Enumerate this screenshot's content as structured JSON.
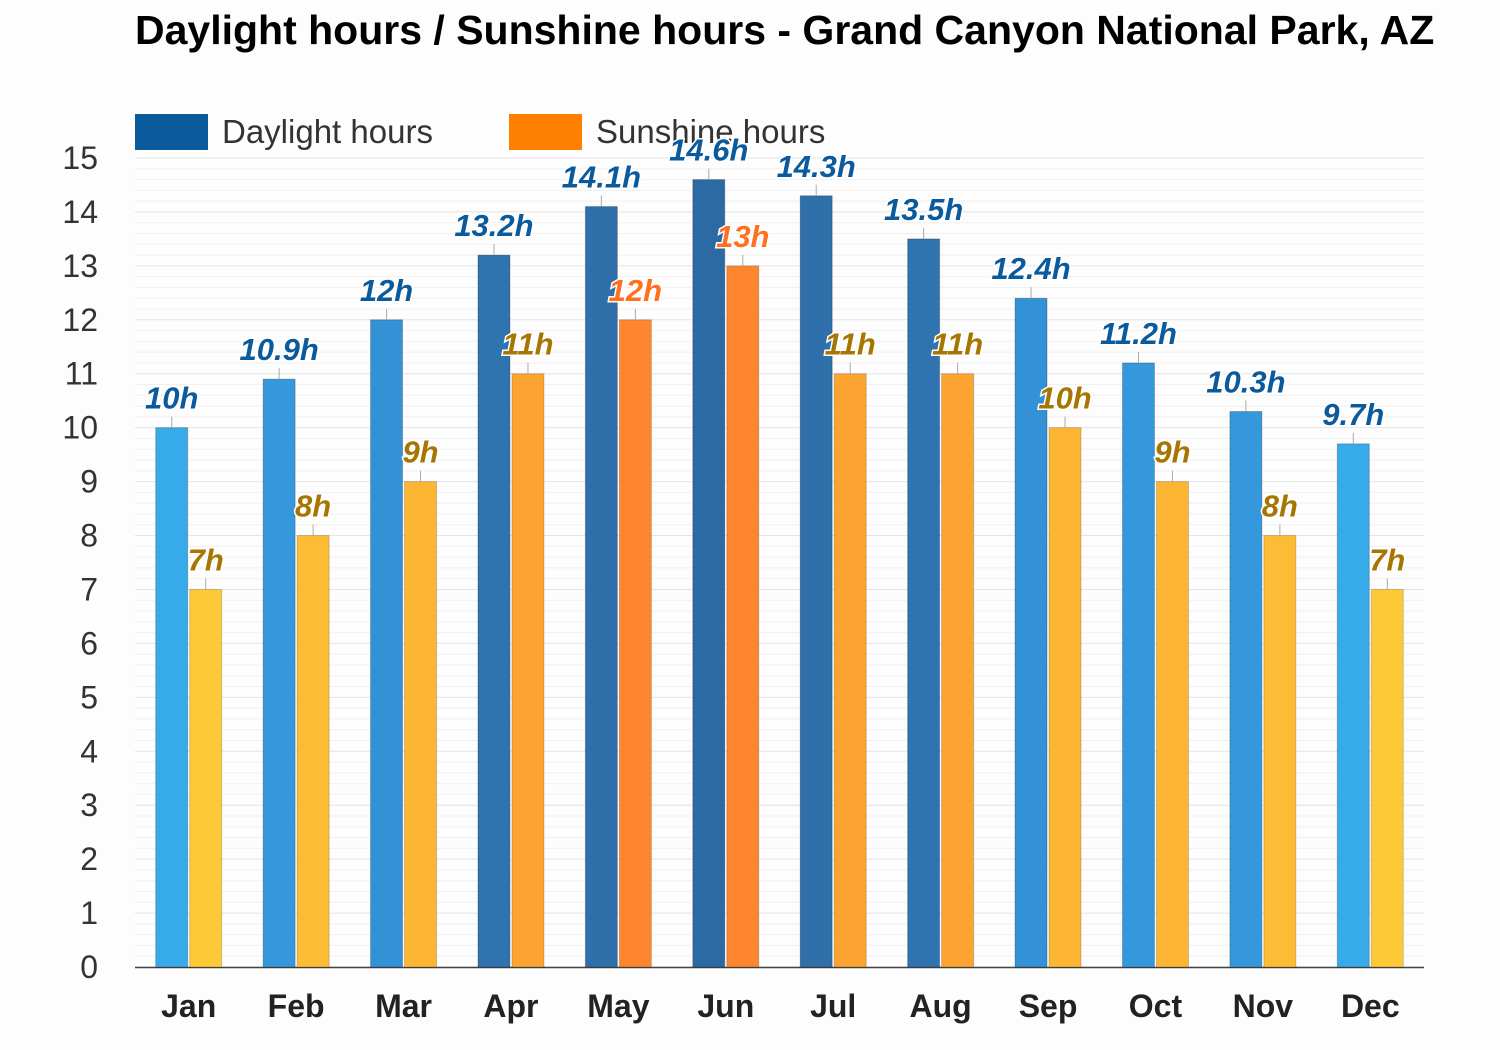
{
  "title": "Daylight hours / Sunshine hours - Grand Canyon National Park, AZ",
  "colors": {
    "daylight_legend": "#0a5a9c",
    "sunshine_legend": "#ff7f00",
    "daylight_label": "#0a5a9c",
    "sunshine_label": "#a67600",
    "sunshine_label_peak": "#ff7020",
    "axis_text": "#333333",
    "gridline": "#e4e4e4"
  },
  "legend": {
    "daylight": "Daylight hours",
    "sunshine": "Sunshine hours"
  },
  "chart_data": {
    "type": "bar",
    "title": "Daylight hours / Sunshine hours - Grand Canyon National Park, AZ",
    "xlabel": "",
    "ylabel": "",
    "ylim": [
      0,
      15
    ],
    "yticks": [
      0,
      1,
      2,
      3,
      4,
      5,
      6,
      7,
      8,
      9,
      10,
      11,
      12,
      13,
      14,
      15
    ],
    "grid": true,
    "legend_position": "top-left",
    "categories": [
      "Jan",
      "Feb",
      "Mar",
      "Apr",
      "May",
      "Jun",
      "Jul",
      "Aug",
      "Sep",
      "Oct",
      "Nov",
      "Dec"
    ],
    "series": [
      {
        "name": "Daylight hours",
        "values": [
          10,
          10.9,
          12,
          13.2,
          14.1,
          14.6,
          14.3,
          13.5,
          12.4,
          11.2,
          10.3,
          9.7
        ],
        "labels": [
          "10h",
          "10.9h",
          "12h",
          "13.2h",
          "14.1h",
          "14.6h",
          "14.3h",
          "13.5h",
          "12.4h",
          "11.2h",
          "10.3h",
          "9.7h"
        ],
        "colors": [
          "#37aaea",
          "#3598dc",
          "#3391d6",
          "#2f74b0",
          "#2f70aa",
          "#2c6aa6",
          "#2f70aa",
          "#2f74b0",
          "#3391d6",
          "#3598dc",
          "#3598dc",
          "#37aaea"
        ]
      },
      {
        "name": "Sunshine hours",
        "values": [
          7,
          8,
          9,
          11,
          12,
          13,
          11,
          11,
          10,
          9,
          8,
          7
        ],
        "labels": [
          "7h",
          "8h",
          "9h",
          "11h",
          "12h",
          "13h",
          "11h",
          "11h",
          "10h",
          "9h",
          "8h",
          "7h"
        ],
        "colors": [
          "#fdc937",
          "#fdbc35",
          "#fdb534",
          "#fca331",
          "#fd862f",
          "#fd862f",
          "#fca331",
          "#fca331",
          "#fdb534",
          "#fdb534",
          "#fdbc35",
          "#fdc937"
        ]
      }
    ]
  }
}
